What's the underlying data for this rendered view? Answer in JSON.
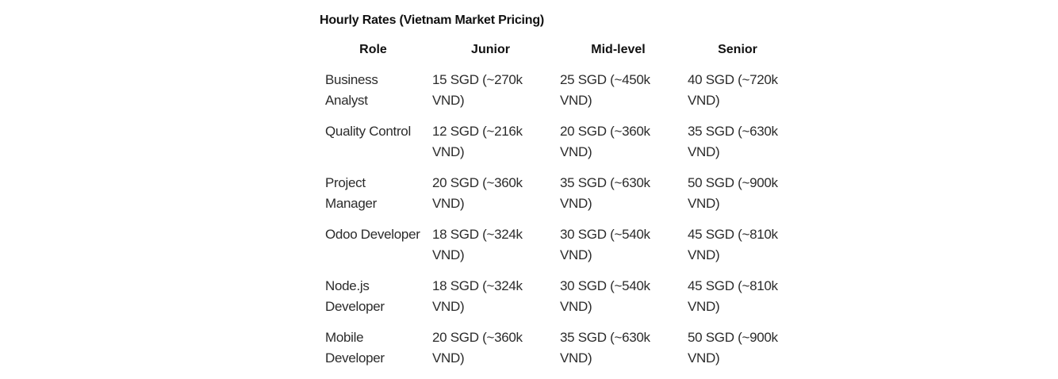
{
  "title": "Hourly Rates (Vietnam Market Pricing)",
  "table": {
    "headers": [
      "Role",
      "Junior",
      "Mid-level",
      "Senior"
    ],
    "rows": [
      [
        "Business Analyst",
        "15 SGD (~270k VND)",
        "25 SGD (~450k VND)",
        "40 SGD (~720k VND)"
      ],
      [
        "Quality Control",
        "12 SGD (~216k VND)",
        "20 SGD (~360k VND)",
        "35 SGD (~630k VND)"
      ],
      [
        "Project Manager",
        "20 SGD (~360k VND)",
        "35 SGD (~630k VND)",
        "50 SGD (~900k VND)"
      ],
      [
        "Odoo Developer",
        "18 SGD (~324k VND)",
        "30 SGD (~540k VND)",
        "45 SGD (~810k VND)"
      ],
      [
        "Node.js Developer",
        "18 SGD (~324k VND)",
        "30 SGD (~540k VND)",
        "45 SGD (~810k VND)"
      ],
      [
        "Mobile Developer",
        "20 SGD (~360k VND)",
        "35 SGD (~630k VND)",
        "50 SGD (~900k VND)"
      ]
    ]
  }
}
